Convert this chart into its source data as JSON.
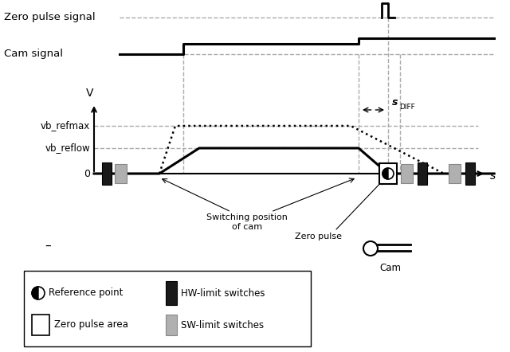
{
  "bg_color": "#ffffff",
  "zero_pulse_label": "Zero pulse signal",
  "cam_signal_label": "Cam signal",
  "v_label": "V",
  "s_label": "s",
  "vb_refmax_label": "vb_refmax",
  "vb_reflow_label": "vb_reflow",
  "zero_label": "0",
  "s_diff_label": "s",
  "s_diff_sub": "DIFF",
  "switching_label": "Switching position\nof cam",
  "zero_pulse_text": "Zero pulse",
  "cam_text": "Cam",
  "ref_point_label": "Reference point",
  "hw_limit_label": "HW-limit switches",
  "zero_pulse_area_label": "Zero pulse area",
  "sw_limit_label": "SW-limit switches",
  "dash_label": "–",
  "dashed_gray": "#aaaaaa",
  "black": "#000000",
  "hw_color": "#1a1a1a",
  "sw_color": "#b0b0b0"
}
